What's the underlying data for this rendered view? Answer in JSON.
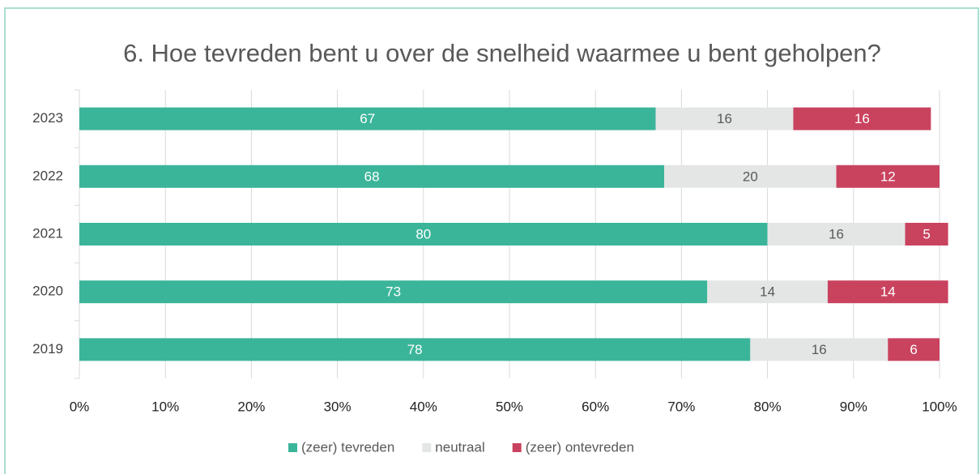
{
  "chart_data": {
    "type": "stacked_bar_horizontal",
    "title": "6. Hoe tevreden bent u over de snelheid waarmee u bent geholpen?",
    "categories": [
      "2023",
      "2022",
      "2021",
      "2020",
      "2019"
    ],
    "series": [
      {
        "name": "(zeer) tevreden",
        "color": "#3bb59a",
        "values": [
          67,
          68,
          80,
          73,
          78
        ]
      },
      {
        "name": "neutraal",
        "color": "#e4e6e6",
        "values": [
          16,
          20,
          16,
          14,
          16
        ]
      },
      {
        "name": "(zeer) ontevreden",
        "color": "#c9435f",
        "values": [
          16,
          12,
          5,
          14,
          6
        ]
      }
    ],
    "xlim": [
      0,
      100
    ],
    "xticks": [
      {
        "value": 0,
        "label": "0%"
      },
      {
        "value": 10,
        "label": "10%"
      },
      {
        "value": 20,
        "label": "20%"
      },
      {
        "value": 30,
        "label": "30%"
      },
      {
        "value": 40,
        "label": "40%"
      },
      {
        "value": 50,
        "label": "50%"
      },
      {
        "value": 60,
        "label": "60%"
      },
      {
        "value": 70,
        "label": "70%"
      },
      {
        "value": 80,
        "label": "80%"
      },
      {
        "value": 90,
        "label": "90%"
      },
      {
        "value": 100,
        "label": "100%"
      }
    ],
    "grid": true,
    "legend": "bottom"
  }
}
